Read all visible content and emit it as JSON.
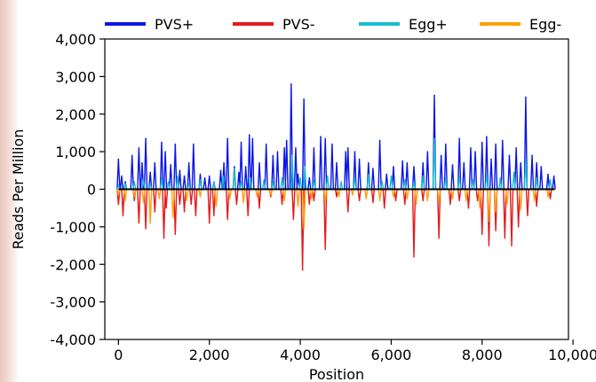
{
  "chart_data": {
    "type": "line",
    "title": "",
    "xlabel": "Position",
    "ylabel": "Reads Per Million",
    "xlim": [
      -300,
      9900
    ],
    "ylim": [
      -4000,
      4000
    ],
    "x_ticks": [
      0,
      2000,
      4000,
      6000,
      8000,
      10000
    ],
    "x_tick_labels": [
      "0",
      "2,000",
      "4,000",
      "6,000",
      "8,000",
      "10,000"
    ],
    "y_ticks": [
      4000,
      3000,
      2000,
      1000,
      0,
      -1000,
      -2000,
      -3000,
      -4000
    ],
    "y_tick_labels": [
      "4,000",
      "3,000",
      "2,000",
      "1,000",
      "0",
      "-1,000",
      "-2,000",
      "-3,000",
      "-4,000"
    ],
    "grid": false,
    "legend_position": "top",
    "series": [
      {
        "name": "PVS+",
        "color": "#0a16e6",
        "x": [
          0,
          70,
          150,
          300,
          450,
          520,
          600,
          700,
          800,
          950,
          1030,
          1150,
          1250,
          1350,
          1450,
          1550,
          1650,
          1800,
          1900,
          2000,
          2100,
          2250,
          2320,
          2400,
          2550,
          2650,
          2700,
          2800,
          2880,
          2950,
          3100,
          3250,
          3400,
          3500,
          3650,
          3700,
          3800,
          3900,
          3950,
          4080,
          4200,
          4300,
          4450,
          4550,
          4700,
          4800,
          5000,
          5050,
          5200,
          5300,
          5500,
          5600,
          5750,
          5900,
          6050,
          6250,
          6350,
          6500,
          6700,
          6800,
          6950,
          7100,
          7200,
          7350,
          7500,
          7600,
          7750,
          7850,
          8000,
          8100,
          8200,
          8300,
          8450,
          8600,
          8750,
          8850,
          8960,
          9100,
          9200,
          9300,
          9450,
          9580
        ],
        "values": [
          800,
          350,
          200,
          900,
          1100,
          700,
          1350,
          450,
          700,
          1250,
          1000,
          650,
          1200,
          500,
          350,
          700,
          1200,
          400,
          300,
          350,
          200,
          500,
          700,
          1350,
          600,
          450,
          1250,
          600,
          1450,
          1350,
          700,
          1200,
          900,
          1000,
          1100,
          1300,
          2800,
          1100,
          400,
          2400,
          300,
          1100,
          1400,
          1350,
          1200,
          700,
          1000,
          1100,
          1000,
          800,
          700,
          550,
          1300,
          400,
          600,
          750,
          700,
          600,
          700,
          1000,
          2500,
          900,
          1200,
          650,
          1350,
          700,
          1100,
          1000,
          1250,
          1400,
          800,
          1200,
          1300,
          900,
          1100,
          700,
          2450,
          900,
          700,
          600,
          400,
          350
        ]
      },
      {
        "name": "PVS-",
        "color": "#e41a1c",
        "x": [
          0,
          100,
          350,
          450,
          600,
          800,
          1000,
          1050,
          1250,
          1350,
          1450,
          1600,
          1700,
          2000,
          2100,
          2400,
          2600,
          2850,
          3100,
          3350,
          3600,
          3850,
          4050,
          4200,
          4300,
          4550,
          4800,
          5050,
          5300,
          5600,
          5850,
          6100,
          6300,
          6500,
          6700,
          7050,
          7300,
          7500,
          7700,
          7900,
          8000,
          8150,
          8300,
          8500,
          8650,
          8800,
          9000,
          9200,
          9500
        ],
        "values": [
          -400,
          -700,
          -300,
          -900,
          -1050,
          -600,
          -1300,
          -500,
          -1200,
          -400,
          -600,
          -400,
          -700,
          -900,
          -700,
          -800,
          -400,
          -700,
          -500,
          -200,
          -400,
          -800,
          -2150,
          -400,
          -300,
          -1600,
          -200,
          -600,
          -300,
          -350,
          -500,
          -300,
          -400,
          -1800,
          -300,
          -1300,
          -400,
          -300,
          -500,
          -300,
          -1200,
          -1500,
          -1100,
          -1300,
          -1500,
          -1000,
          -700,
          -450,
          -250
        ]
      },
      {
        "name": "Egg+",
        "color": "#17becf",
        "x": [
          0,
          150,
          350,
          550,
          700,
          950,
          1100,
          1300,
          1550,
          1800,
          2100,
          2300,
          2550,
          2700,
          2900,
          3200,
          3400,
          3600,
          3820,
          4000,
          4100,
          4300,
          4600,
          4900,
          5200,
          5500,
          5800,
          6000,
          6300,
          6500,
          6700,
          6950,
          7200,
          7500,
          7800,
          8100,
          8400,
          8700,
          8960,
          9200,
          9500
        ],
        "values": [
          100,
          150,
          200,
          250,
          150,
          300,
          200,
          350,
          150,
          250,
          200,
          350,
          550,
          200,
          300,
          250,
          200,
          300,
          900,
          300,
          600,
          250,
          350,
          200,
          300,
          400,
          200,
          350,
          250,
          200,
          350,
          1350,
          300,
          350,
          250,
          400,
          300,
          450,
          800,
          300,
          250
        ]
      },
      {
        "name": "Egg-",
        "color": "#ff9f0a",
        "x": [
          0,
          150,
          350,
          550,
          700,
          900,
          1200,
          1500,
          1800,
          2150,
          2450,
          2750,
          3050,
          3350,
          3650,
          3950,
          4080,
          4250,
          4550,
          4850,
          5150,
          5450,
          5750,
          6050,
          6350,
          6550,
          6800,
          7050,
          7350,
          7650,
          7950,
          8150,
          8300,
          8550,
          8850,
          9150,
          9450
        ],
        "values": [
          -150,
          -300,
          -200,
          -350,
          -900,
          -250,
          -750,
          -300,
          -200,
          -450,
          -250,
          -350,
          -200,
          -150,
          -300,
          -450,
          -1050,
          -250,
          -350,
          -200,
          -150,
          -250,
          -300,
          -200,
          -250,
          -400,
          -300,
          -350,
          -250,
          -300,
          -500,
          -850,
          -600,
          -400,
          -550,
          -300,
          -200
        ]
      }
    ]
  }
}
